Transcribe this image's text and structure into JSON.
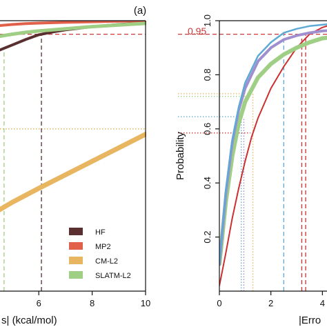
{
  "colors": {
    "hf": "#5a2f2f",
    "mp2": "#e0604a",
    "cm": "#e8b660",
    "slatm": "#9fcf84",
    "blue": "#5fa9d6",
    "purple": "#9f8fcf",
    "red_line": "#cc2f2f",
    "ref_dash": "#c83838",
    "axis": "#111111"
  },
  "chart_data": [
    {
      "type": "line",
      "panel_label": "(a)",
      "xlabel": "s| (kcal/mol)",
      "ylabel": "",
      "xlim": [
        0,
        10
      ],
      "ylim": [
        0,
        1
      ],
      "x_ticks": [
        6,
        8,
        10
      ],
      "x_tick_labels": [
        "6",
        "8",
        "10"
      ],
      "reference_lines": [
        {
          "axis": "y",
          "value": 0.95,
          "color": "#c83838",
          "style": "dashed"
        },
        {
          "axis": "y",
          "value": 0.6,
          "color": "#e0b050",
          "style": "dotted"
        },
        {
          "axis": "x",
          "value": 6.1,
          "ymax": 0.95,
          "color": "#5a2f2f",
          "style": "dashed"
        },
        {
          "axis": "x",
          "value": 4.7,
          "ymax": 0.9,
          "color": "#9fcf84",
          "style": "dashed"
        }
      ],
      "legend": {
        "position": "bottom-right",
        "entries": [
          {
            "label": "HF",
            "color": "#5a2f2f"
          },
          {
            "label": "MP2",
            "color": "#e0604a"
          },
          {
            "label": "CM-L2",
            "color": "#e8b660"
          },
          {
            "label": "SLATM-L2",
            "color": "#9fcf84"
          }
        ]
      },
      "series": [
        {
          "name": "HF",
          "color": "#5a2f2f",
          "width": 4,
          "x": [
            3.5,
            4.0,
            4.5,
            5.0,
            5.5,
            6.0,
            6.5,
            7.0,
            7.5,
            8.0,
            9.0,
            10.0
          ],
          "y": [
            0.84,
            0.865,
            0.89,
            0.91,
            0.93,
            0.948,
            0.958,
            0.966,
            0.972,
            0.978,
            0.986,
            0.992
          ]
        },
        {
          "name": "MP2",
          "color": "#e0604a",
          "width": 4,
          "x": [
            3.5,
            4.0,
            4.5,
            5.0,
            5.5,
            6.0,
            7.0,
            8.0,
            9.0,
            10.0
          ],
          "y": [
            0.972,
            0.978,
            0.982,
            0.986,
            0.989,
            0.991,
            0.994,
            0.996,
            0.998,
            0.999
          ]
        },
        {
          "name": "SLATM-L2",
          "color": "#9fcf84",
          "width": 5,
          "x": [
            3.5,
            4.0,
            4.5,
            5.0,
            5.5,
            6.0,
            7.0,
            8.0,
            9.0,
            10.0
          ],
          "y": [
            0.925,
            0.935,
            0.942,
            0.95,
            0.957,
            0.962,
            0.97,
            0.978,
            0.984,
            0.99
          ]
        },
        {
          "name": "CM-L2",
          "color": "#e8b660",
          "width": 7,
          "x": [
            3.5,
            4.0,
            5.0,
            6.0,
            7.0,
            8.0,
            9.0,
            10.0
          ],
          "y": [
            0.245,
            0.27,
            0.328,
            0.38,
            0.43,
            0.48,
            0.53,
            0.58
          ]
        }
      ]
    },
    {
      "type": "line",
      "panel_label": "",
      "xlabel": "|Erro",
      "ylabel": "Probability",
      "xlim": [
        0,
        4.5
      ],
      "ylim": [
        0,
        1
      ],
      "x_ticks": [
        0,
        2,
        4
      ],
      "x_tick_labels": [
        "0",
        "2",
        "4"
      ],
      "y_ticks": [
        0.2,
        0.4,
        0.6,
        0.8,
        1.0
      ],
      "y_tick_labels": [
        "0.2",
        "0.4",
        "0.6",
        "0.8",
        "1.0"
      ],
      "reference_label": "0.95",
      "reference_lines": [
        {
          "axis": "y",
          "value": 0.95,
          "color": "#c83838",
          "style": "dashed"
        },
        {
          "axis": "y",
          "value": 0.73,
          "xmax": 1.3,
          "color": "#e8b660",
          "style": "dotted"
        },
        {
          "axis": "y",
          "value": 0.72,
          "xmax": 1.1,
          "color": "#9fcf84",
          "style": "dotted"
        },
        {
          "axis": "y",
          "value": 0.645,
          "xmax": 0.9,
          "color": "#5fa9d6",
          "style": "dotted"
        },
        {
          "axis": "y",
          "value": 0.585,
          "xmax": 1.2,
          "color": "#c83838",
          "style": "dotted"
        },
        {
          "axis": "x",
          "value": 0.85,
          "ymax": 0.64,
          "color": "#5fa9d6",
          "style": "dotted"
        },
        {
          "axis": "x",
          "value": 0.95,
          "ymax": 0.64,
          "color": "#9f8fcf",
          "style": "dotted"
        },
        {
          "axis": "x",
          "value": 1.3,
          "ymax": 0.73,
          "color": "#e8b660",
          "style": "dotted"
        },
        {
          "axis": "x",
          "value": 2.5,
          "ymax": 0.95,
          "color": "#5fa9d6",
          "style": "dashed"
        },
        {
          "axis": "x",
          "value": 3.2,
          "ymax": 0.95,
          "color": "#cc2f2f",
          "style": "dashed"
        },
        {
          "axis": "x",
          "value": 3.35,
          "ymax": 0.95,
          "color": "#cc2f2f",
          "style": "dashed"
        }
      ],
      "series": [
        {
          "name": "",
          "color": "#cc2f2f",
          "width": 2,
          "x": [
            0,
            0.25,
            0.5,
            0.75,
            1.0,
            1.25,
            1.5,
            2.0,
            2.5,
            3.0,
            3.5,
            4.0,
            4.5
          ],
          "y": [
            0.02,
            0.14,
            0.27,
            0.38,
            0.48,
            0.57,
            0.64,
            0.75,
            0.83,
            0.9,
            0.95,
            0.975,
            0.99
          ]
        },
        {
          "name": "",
          "color": "#9fcf84",
          "width": 6,
          "x": [
            0,
            0.25,
            0.5,
            0.75,
            1.0,
            1.5,
            2.0,
            2.5,
            3.0,
            3.5,
            4.0,
            4.5
          ],
          "y": [
            0.1,
            0.33,
            0.5,
            0.62,
            0.7,
            0.79,
            0.84,
            0.875,
            0.9,
            0.92,
            0.935,
            0.94
          ]
        },
        {
          "name": "",
          "color": "#9f8fcf",
          "width": 4,
          "x": [
            0,
            0.25,
            0.5,
            0.75,
            1.0,
            1.5,
            2.0,
            2.5,
            3.0,
            3.5,
            4.0,
            4.5
          ],
          "y": [
            0.1,
            0.36,
            0.55,
            0.67,
            0.75,
            0.85,
            0.9,
            0.93,
            0.945,
            0.955,
            0.962,
            0.965
          ]
        },
        {
          "name": "",
          "color": "#5fa9d6",
          "width": 2.5,
          "x": [
            0,
            0.25,
            0.5,
            0.75,
            1.0,
            1.5,
            2.0,
            2.5,
            3.0,
            3.5,
            4.0,
            4.5
          ],
          "y": [
            0.1,
            0.37,
            0.56,
            0.68,
            0.77,
            0.87,
            0.92,
            0.955,
            0.97,
            0.98,
            0.985,
            0.99
          ]
        }
      ]
    }
  ]
}
